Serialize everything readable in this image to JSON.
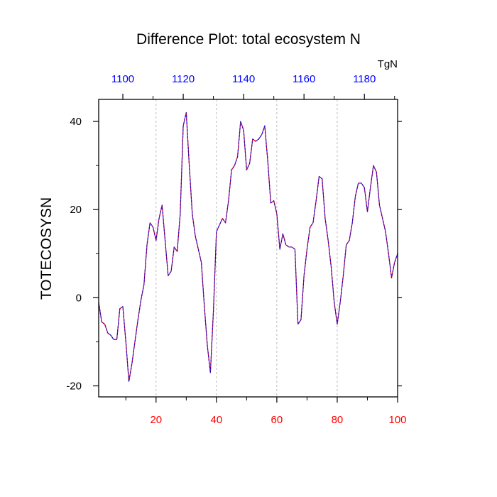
{
  "chart_data": {
    "type": "line",
    "title": "Difference Plot: total ecosystem N",
    "ylabel": "TOTECOSYSN",
    "units": "TgN",
    "xlim": [
      1,
      100
    ],
    "ylim": [
      -22.5,
      45
    ],
    "y_ticks": [
      -20,
      0,
      20,
      40
    ],
    "y_tick_labels": [
      "-20",
      "0",
      "20",
      "40"
    ],
    "x_bottom_ticks": [
      20,
      40,
      60,
      80,
      100
    ],
    "x_bottom_tick_labels": [
      "20",
      "40",
      "60",
      "80",
      "100"
    ],
    "x_bottom_minor_ticks": [
      10,
      30,
      50,
      70,
      90
    ],
    "x_top_ticks": [
      9,
      29,
      49,
      69,
      89
    ],
    "x_top_tick_labels": [
      "1100",
      "1120",
      "1140",
      "1160",
      "1180"
    ],
    "x_top_minor_ticks": [
      19,
      39,
      59,
      79,
      99
    ],
    "grid_x": [
      20,
      40,
      60,
      80
    ],
    "series": [
      {
        "name": "TOTECOSYSN difference",
        "x": [
          1,
          2,
          3,
          4,
          5,
          6,
          7,
          8,
          9,
          10,
          11,
          12,
          13,
          14,
          15,
          16,
          17,
          18,
          19,
          20,
          21,
          22,
          23,
          24,
          25,
          26,
          27,
          28,
          29,
          30,
          31,
          32,
          33,
          34,
          35,
          36,
          37,
          38,
          39,
          40,
          41,
          42,
          43,
          44,
          45,
          46,
          47,
          48,
          49,
          50,
          51,
          52,
          53,
          54,
          55,
          56,
          57,
          58,
          59,
          60,
          61,
          62,
          63,
          64,
          65,
          66,
          67,
          68,
          69,
          70,
          71,
          72,
          73,
          74,
          75,
          76,
          77,
          78,
          79,
          80,
          81,
          82,
          83,
          84,
          85,
          86,
          87,
          88,
          89,
          90,
          91,
          92,
          93,
          94,
          95,
          96,
          97,
          98,
          99,
          100
        ],
        "values": [
          -1,
          -5.5,
          -6,
          -8,
          -8.5,
          -9.5,
          -9.5,
          -2.5,
          -2,
          -10,
          -19,
          -15,
          -10,
          -5,
          -0.5,
          3,
          12,
          17,
          16,
          13,
          18,
          21,
          13,
          5,
          6,
          11.5,
          10.5,
          19,
          39,
          42,
          30,
          19,
          14,
          11,
          8,
          -2,
          -11,
          -17,
          -3,
          15,
          16.5,
          18,
          17,
          22,
          29,
          30,
          32,
          40,
          38,
          29,
          30.5,
          36,
          35.5,
          36,
          37,
          39,
          31,
          21.5,
          22,
          19,
          11,
          14.5,
          12,
          11.5,
          11.5,
          11,
          -6,
          -5,
          5,
          11,
          16,
          17,
          22,
          27.5,
          27,
          18,
          13,
          7,
          -1,
          -6,
          -1,
          5,
          12,
          13,
          17,
          23,
          26,
          26,
          25,
          19.5,
          25,
          30,
          28.5,
          21,
          18,
          15,
          10,
          4.5,
          8,
          10
        ]
      }
    ]
  }
}
